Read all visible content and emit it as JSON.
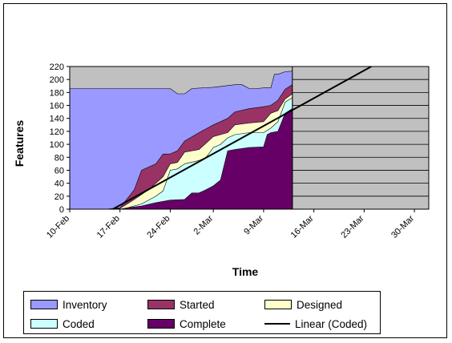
{
  "chart_data": {
    "type": "area",
    "title": "",
    "xlabel": "Time",
    "ylabel": "Features",
    "x_tick_labels": [
      "10-Feb",
      "17-Feb",
      "24-Feb",
      "2-Mar",
      "9-Mar",
      "16-Mar",
      "23-Mar",
      "30-Mar"
    ],
    "x_tick_days": [
      0,
      7,
      14,
      20,
      27,
      34,
      41,
      48
    ],
    "xlim_days": [
      0,
      50
    ],
    "ylim": [
      0,
      220
    ],
    "y_ticks": [
      0,
      20,
      40,
      60,
      80,
      100,
      120,
      140,
      160,
      180,
      200,
      220
    ],
    "plot_background": "#c0c0c0",
    "grid": "horizontal",
    "legend_position": "bottom",
    "data_end_day": 31,
    "series": [
      {
        "name": "Inventory",
        "color": "#9999ff",
        "points": [
          [
            0,
            186
          ],
          [
            14,
            186
          ],
          [
            15,
            178
          ],
          [
            16,
            178
          ],
          [
            17,
            186
          ],
          [
            20,
            188
          ],
          [
            23,
            192
          ],
          [
            24,
            192
          ],
          [
            25,
            186
          ],
          [
            26,
            186
          ],
          [
            27,
            187
          ],
          [
            28,
            187
          ],
          [
            28.5,
            208
          ],
          [
            29,
            208
          ],
          [
            30,
            212
          ],
          [
            31,
            213
          ]
        ]
      },
      {
        "name": "Started",
        "color": "#993366",
        "points": [
          [
            0,
            0
          ],
          [
            5,
            0
          ],
          [
            7,
            2
          ],
          [
            9,
            30
          ],
          [
            10,
            60
          ],
          [
            12,
            70
          ],
          [
            13,
            85
          ],
          [
            14,
            85
          ],
          [
            15,
            90
          ],
          [
            16,
            105
          ],
          [
            18,
            118
          ],
          [
            20,
            130
          ],
          [
            21,
            135
          ],
          [
            22,
            140
          ],
          [
            23,
            150
          ],
          [
            25,
            155
          ],
          [
            27,
            158
          ],
          [
            28,
            160
          ],
          [
            29,
            168
          ],
          [
            30,
            185
          ],
          [
            31,
            192
          ]
        ]
      },
      {
        "name": "Designed",
        "color": "#ffffcc",
        "points": [
          [
            0,
            0
          ],
          [
            5,
            0
          ],
          [
            7,
            1
          ],
          [
            9,
            15
          ],
          [
            11,
            30
          ],
          [
            13,
            50
          ],
          [
            14,
            70
          ],
          [
            15,
            72
          ],
          [
            16,
            88
          ],
          [
            18,
            92
          ],
          [
            20,
            112
          ],
          [
            21,
            115
          ],
          [
            22,
            118
          ],
          [
            23,
            130
          ],
          [
            25,
            133
          ],
          [
            27,
            135
          ],
          [
            28,
            148
          ],
          [
            29,
            152
          ],
          [
            30,
            170
          ],
          [
            31,
            178
          ]
        ]
      },
      {
        "name": "Coded",
        "color": "#ccffff",
        "points": [
          [
            0,
            0
          ],
          [
            7,
            0
          ],
          [
            8,
            2
          ],
          [
            10,
            8
          ],
          [
            12,
            20
          ],
          [
            13,
            28
          ],
          [
            14,
            60
          ],
          [
            15,
            62
          ],
          [
            16,
            70
          ],
          [
            18,
            75
          ],
          [
            19,
            80
          ],
          [
            20,
            95
          ],
          [
            21,
            100
          ],
          [
            22,
            110
          ],
          [
            23,
            115
          ],
          [
            25,
            118
          ],
          [
            27,
            118
          ],
          [
            28,
            125
          ],
          [
            29,
            135
          ],
          [
            30,
            165
          ],
          [
            31,
            172
          ]
        ]
      },
      {
        "name": "Complete",
        "color": "#660066",
        "points": [
          [
            0,
            0
          ],
          [
            7,
            0
          ],
          [
            8,
            2
          ],
          [
            10,
            5
          ],
          [
            12,
            10
          ],
          [
            13,
            12
          ],
          [
            14,
            14
          ],
          [
            16,
            15
          ],
          [
            17,
            25
          ],
          [
            18,
            25
          ],
          [
            19,
            30
          ],
          [
            20,
            36
          ],
          [
            21,
            45
          ],
          [
            22,
            90
          ],
          [
            23,
            92
          ],
          [
            25,
            95
          ],
          [
            27,
            96
          ],
          [
            27.5,
            115
          ],
          [
            28,
            118
          ],
          [
            29,
            120
          ],
          [
            30,
            148
          ],
          [
            31,
            155
          ]
        ]
      },
      {
        "name": "Linear (Coded)",
        "color": "#000000",
        "style": "trendline",
        "points": [
          [
            6,
            0
          ],
          [
            42,
            220
          ]
        ]
      }
    ]
  }
}
